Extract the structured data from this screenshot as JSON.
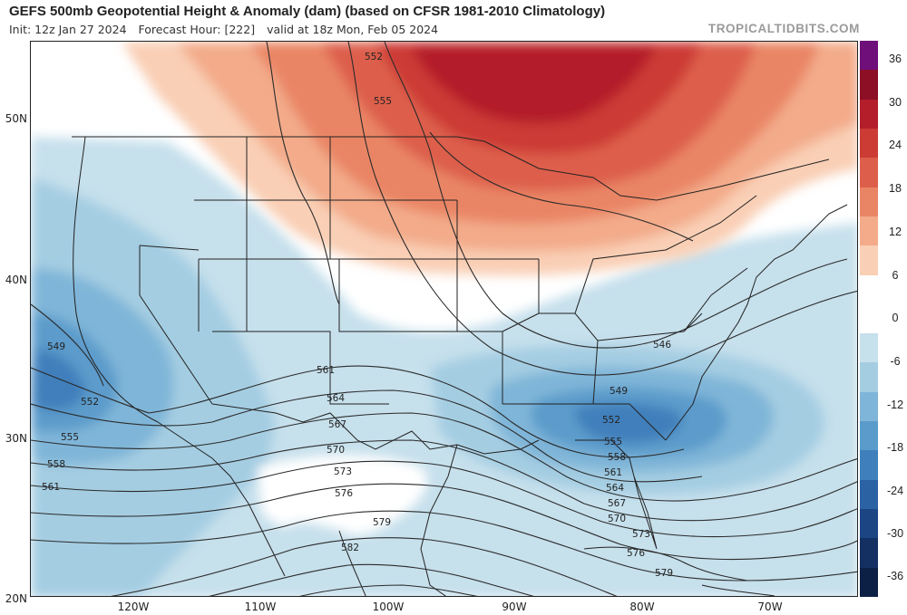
{
  "header": {
    "title": "GEFS 500mb Geopotential Height & Anomaly (dam) (based on CFSR 1981-2010 Climatology)",
    "init": "Init: 12z Jan 27 2024",
    "forecast_hour": "Forecast Hour: [222]",
    "valid": "valid at 18z Mon, Feb 05 2024",
    "brand": "TROPICALTIDBITS.COM"
  },
  "map": {
    "latitudes": [
      "50N",
      "40N",
      "30N",
      "20N"
    ],
    "longitudes": [
      "120W",
      "110W",
      "100W",
      "90W",
      "80W",
      "70W"
    ],
    "contours": {
      "552a": "552",
      "555a": "555",
      "549w": "549",
      "552w": "552",
      "555w": "555",
      "558w": "558",
      "561w": "561",
      "561c": "561",
      "564c": "564",
      "567c": "567",
      "570c": "570",
      "573c": "573",
      "576c": "576",
      "579c": "579",
      "582c": "582",
      "546e": "546",
      "549e": "549",
      "552e": "552",
      "555e": "555",
      "558e": "558",
      "561e": "561",
      "564e": "564",
      "567e": "567",
      "570e": "570",
      "573e": "573",
      "576e": "576",
      "579e": "579"
    }
  },
  "colorbar": {
    "ticks": [
      "36",
      "30",
      "24",
      "18",
      "12",
      "6",
      "0",
      "-6",
      "-12",
      "-18",
      "-24",
      "-30",
      "-36"
    ],
    "colors": [
      "#6e0f7a",
      "#8c0f26",
      "#b31e2a",
      "#cc3b34",
      "#dd5f4b",
      "#e98565",
      "#f3ab8a",
      "#f9cfb5",
      "#ffffff",
      "#ffffff",
      "#c6e0ec",
      "#a4cde2",
      "#7fb5d8",
      "#5b9bcb",
      "#3f7fbb",
      "#2a62a3",
      "#1c4683",
      "#142f62",
      "#0c1f45"
    ]
  }
}
